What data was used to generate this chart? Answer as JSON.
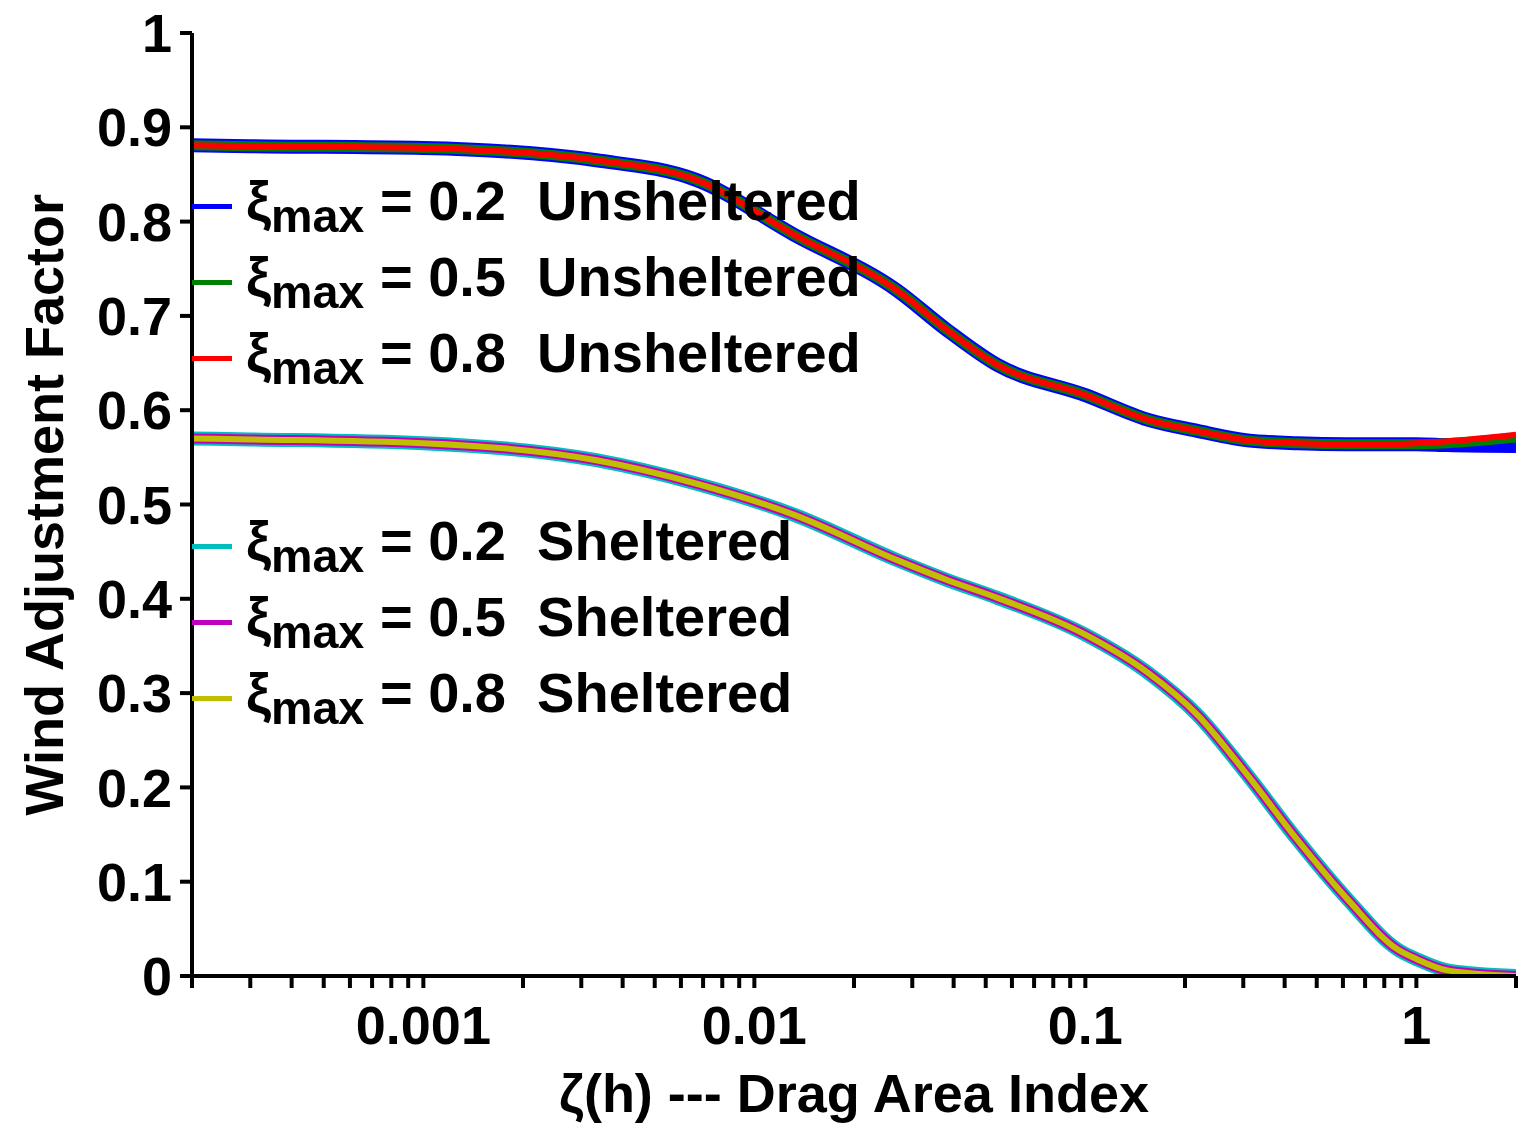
{
  "chart_data": {
    "type": "line",
    "xlabel": "ζ(h) --- Drag Area Index",
    "ylabel": "Wind Adjustment Factor",
    "log": "x",
    "xlim": [
      0.0002,
      2
    ],
    "ylim": [
      0,
      1
    ],
    "xticks": [
      {
        "value": 0.0002,
        "label": null
      },
      {
        "value": 0.0003,
        "label": null
      },
      {
        "value": 0.0004,
        "label": null
      },
      {
        "value": 0.0005,
        "label": null
      },
      {
        "value": 0.0006,
        "label": null
      },
      {
        "value": 0.0007,
        "label": null
      },
      {
        "value": 0.0008,
        "label": null
      },
      {
        "value": 0.0009,
        "label": null
      },
      {
        "value": 0.001,
        "label": "0.001"
      },
      {
        "value": 0.002,
        "label": null
      },
      {
        "value": 0.003,
        "label": null
      },
      {
        "value": 0.004,
        "label": null
      },
      {
        "value": 0.005,
        "label": null
      },
      {
        "value": 0.006,
        "label": null
      },
      {
        "value": 0.007,
        "label": null
      },
      {
        "value": 0.008,
        "label": null
      },
      {
        "value": 0.009,
        "label": null
      },
      {
        "value": 0.01,
        "label": "0.01"
      },
      {
        "value": 0.02,
        "label": null
      },
      {
        "value": 0.03,
        "label": null
      },
      {
        "value": 0.04,
        "label": null
      },
      {
        "value": 0.05,
        "label": null
      },
      {
        "value": 0.06,
        "label": null
      },
      {
        "value": 0.07,
        "label": null
      },
      {
        "value": 0.08,
        "label": null
      },
      {
        "value": 0.09,
        "label": null
      },
      {
        "value": 0.1,
        "label": "0.1"
      },
      {
        "value": 0.2,
        "label": null
      },
      {
        "value": 0.3,
        "label": null
      },
      {
        "value": 0.4,
        "label": null
      },
      {
        "value": 0.5,
        "label": null
      },
      {
        "value": 0.6,
        "label": null
      },
      {
        "value": 0.7,
        "label": null
      },
      {
        "value": 0.8,
        "label": null
      },
      {
        "value": 0.9,
        "label": null
      },
      {
        "value": 1,
        "label": "1"
      },
      {
        "value": 2,
        "label": null
      }
    ],
    "yticks": [
      0,
      0.1,
      0.2,
      0.3,
      0.4,
      0.5,
      0.6,
      0.7,
      0.8,
      0.9,
      1
    ],
    "grid": false,
    "legend": "top left",
    "marker": "none",
    "line_style": "solid",
    "x": [
      0.0002,
      0.0003,
      0.001,
      0.00333,
      0.0067,
      0.0132,
      0.027,
      0.0382,
      0.0542,
      0.1,
      0.154,
      0.218,
      0.309,
      0.438,
      0.621,
      0.879,
      1,
      1.24,
      2
    ],
    "series": [
      {
        "name": "ξ$_{max}$ = 0.2  Unsheltered",
        "color": "#0000ff",
        "values": [
          0.881,
          0.88,
          0.878,
          0.865,
          0.844,
          0.786,
          0.727,
          0.685,
          0.648,
          0.616,
          0.59,
          0.578,
          0.568,
          0.565,
          0.564,
          0.564,
          0.564,
          0.563,
          0.562
        ]
      },
      {
        "name": "ξ$_{max}$ = 0.5  Unsheltered",
        "color": "#008000",
        "values": [
          0.881,
          0.88,
          0.878,
          0.865,
          0.844,
          0.786,
          0.727,
          0.685,
          0.648,
          0.616,
          0.59,
          0.578,
          0.568,
          0.565,
          0.564,
          0.564,
          0.564,
          0.565,
          0.571
        ]
      },
      {
        "name": "ξ$_{max}$ = 0.8  Unsheltered",
        "color": "#ff0000",
        "values": [
          0.881,
          0.88,
          0.878,
          0.865,
          0.844,
          0.786,
          0.727,
          0.685,
          0.648,
          0.616,
          0.59,
          0.578,
          0.568,
          0.565,
          0.564,
          0.564,
          0.565,
          0.567,
          0.574
        ]
      },
      {
        "name": "ξ$_{max}$ = 0.2  Sheltered",
        "color": "#00bfbf",
        "values": [
          0.57,
          0.569,
          0.565,
          0.547,
          0.522,
          0.489,
          0.441,
          0.42,
          0.401,
          0.362,
          0.322,
          0.277,
          0.213,
          0.144,
          0.081,
          0.028,
          0.018,
          0.006,
          0
        ]
      },
      {
        "name": "ξ$_{max}$ = 0.5  Sheltered",
        "color": "#bf00bf",
        "values": [
          0.57,
          0.569,
          0.565,
          0.547,
          0.522,
          0.489,
          0.441,
          0.42,
          0.401,
          0.362,
          0.322,
          0.277,
          0.213,
          0.144,
          0.081,
          0.028,
          0.018,
          0.006,
          0
        ]
      },
      {
        "name": "ξ$_{max}$ = 0.8  Sheltered",
        "color": "#bfbf00",
        "values": [
          0.57,
          0.569,
          0.565,
          0.547,
          0.522,
          0.489,
          0.441,
          0.42,
          0.401,
          0.362,
          0.322,
          0.277,
          0.213,
          0.144,
          0.081,
          0.028,
          0.018,
          0.006,
          0
        ]
      }
    ]
  }
}
